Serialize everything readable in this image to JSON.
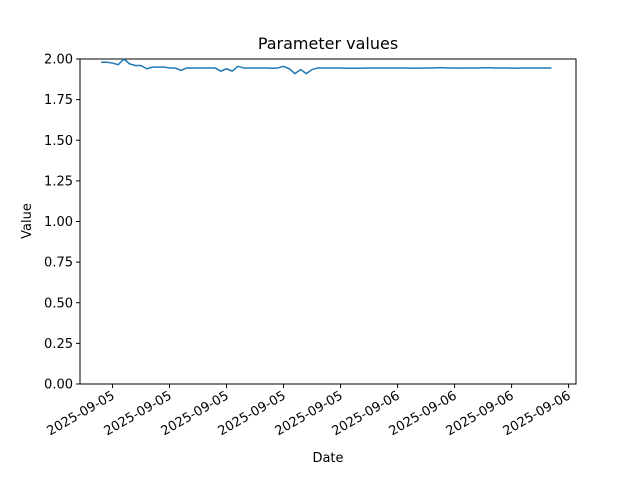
{
  "chart_data": {
    "type": "line",
    "title": "Parameter values",
    "x_label": "Date",
    "y_label": "Value",
    "color": "#1f77b4",
    "values": [
      1.98,
      1.98,
      1.975,
      1.965,
      2.0,
      1.97,
      1.96,
      1.96,
      1.94,
      1.95,
      1.95,
      1.95,
      1.945,
      1.945,
      1.93,
      1.945,
      1.945,
      1.945,
      1.945,
      1.945,
      1.945,
      1.925,
      1.94,
      1.925,
      1.955,
      1.945,
      1.945,
      1.945,
      1.945,
      1.945,
      1.943,
      1.945,
      1.955,
      1.94,
      1.91,
      1.935,
      1.91,
      1.935,
      1.945,
      1.945,
      1.945,
      1.945,
      1.945,
      1.943,
      1.943,
      1.943,
      1.944,
      1.945,
      1.945,
      1.945,
      1.945,
      1.945,
      1.945,
      1.945,
      1.944,
      1.944,
      1.944,
      1.945,
      1.945,
      1.946,
      1.946,
      1.945,
      1.945,
      1.944,
      1.945,
      1.945,
      1.945,
      1.946,
      1.946,
      1.945,
      1.945,
      1.945,
      1.944,
      1.944,
      1.945,
      1.945,
      1.945,
      1.945,
      1.945,
      1.945
    ],
    "xlim": [
      -3.7,
      83.3
    ],
    "xticks": [
      {
        "value": 2,
        "label": "2025-09-05"
      },
      {
        "value": 12,
        "label": "2025-09-05"
      },
      {
        "value": 22,
        "label": "2025-09-05"
      },
      {
        "value": 32,
        "label": "2025-09-05"
      },
      {
        "value": 42,
        "label": "2025-09-05"
      },
      {
        "value": 52,
        "label": "2025-09-06"
      },
      {
        "value": 62,
        "label": "2025-09-06"
      },
      {
        "value": 72,
        "label": "2025-09-06"
      },
      {
        "value": 82,
        "label": "2025-09-06"
      }
    ],
    "ylim": [
      0,
      2.0
    ],
    "yticks": [
      {
        "value": 0,
        "label": "0.00"
      },
      {
        "value": 0.25,
        "label": "0.25"
      },
      {
        "value": 0.5,
        "label": "0.50"
      },
      {
        "value": 0.75,
        "label": "0.75"
      },
      {
        "value": 1.0,
        "label": "1.00"
      },
      {
        "value": 1.25,
        "label": "1.25"
      },
      {
        "value": 1.5,
        "label": "1.50"
      },
      {
        "value": 1.75,
        "label": "1.75"
      },
      {
        "value": 2.0,
        "label": "2.00"
      }
    ]
  }
}
